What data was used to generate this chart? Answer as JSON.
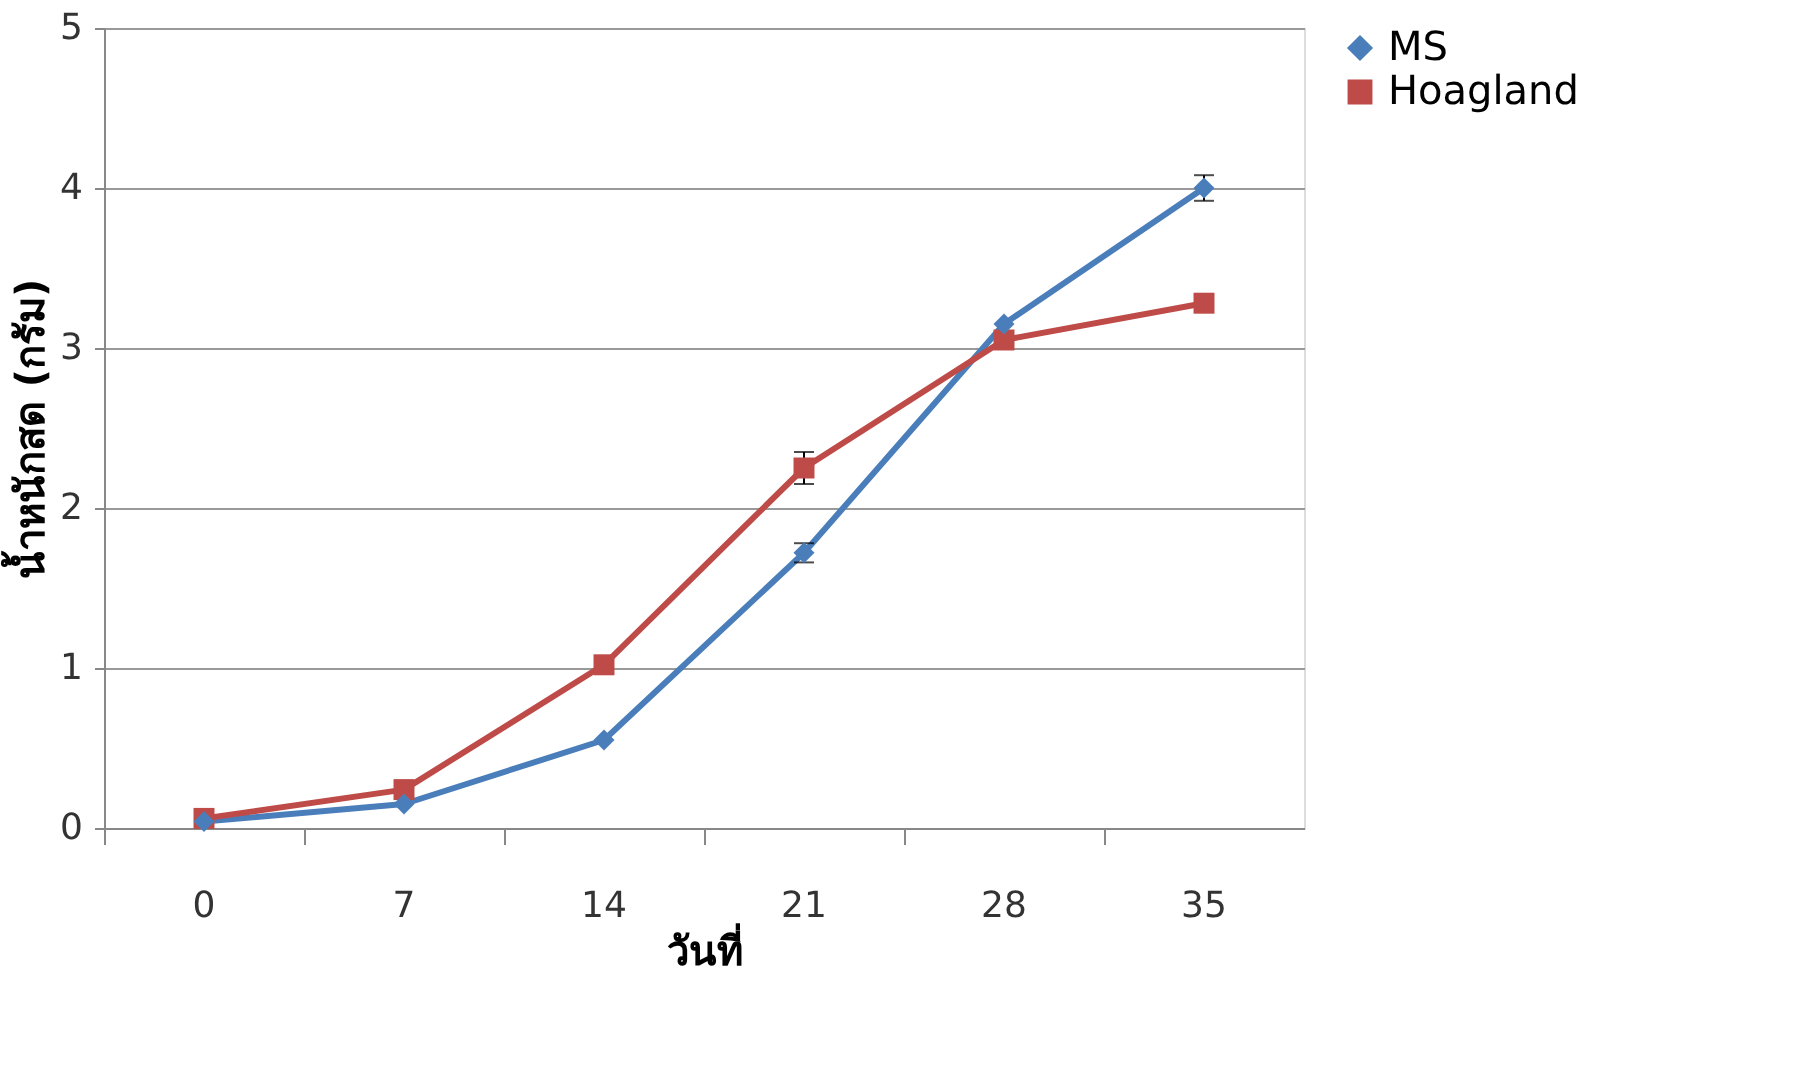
{
  "chart_data": {
    "type": "line",
    "xlabel": "วันที่",
    "ylabel": "น้ำหนักสด (กรัม)",
    "categories": [
      "0",
      "7",
      "14",
      "21",
      "28",
      "35"
    ],
    "series": [
      {
        "name": "MS",
        "color": "#4a7ebb",
        "marker": "diamond",
        "values": [
          0.04,
          0.15,
          0.55,
          1.72,
          3.15,
          4.0
        ],
        "errors": [
          null,
          null,
          null,
          0.06,
          null,
          0.08
        ]
      },
      {
        "name": "Hoagland",
        "color": "#be4b48",
        "marker": "square",
        "values": [
          0.06,
          0.24,
          1.02,
          2.25,
          3.05,
          3.28
        ],
        "errors": [
          null,
          null,
          null,
          0.1,
          null,
          null
        ]
      }
    ],
    "ylim": [
      0,
      5
    ],
    "yticks": [
      0,
      1,
      2,
      3,
      4,
      5
    ],
    "grid": "y",
    "legend": "right"
  }
}
